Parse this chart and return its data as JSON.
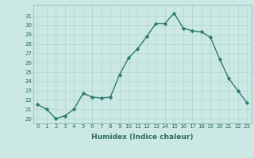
{
  "x": [
    0,
    1,
    2,
    3,
    4,
    5,
    6,
    7,
    8,
    9,
    10,
    11,
    12,
    13,
    14,
    15,
    16,
    17,
    18,
    19,
    20,
    21,
    22,
    23
  ],
  "y": [
    21.5,
    21.0,
    20.0,
    20.3,
    21.0,
    22.7,
    22.3,
    22.2,
    22.3,
    24.7,
    26.5,
    27.5,
    28.8,
    30.2,
    30.2,
    31.3,
    29.7,
    29.4,
    29.3,
    28.7,
    26.4,
    24.3,
    23.0,
    21.7
  ],
  "xlabel": "Humidex (Indice chaleur)",
  "xlim": [
    -0.5,
    23.5
  ],
  "ylim": [
    19.5,
    32.2
  ],
  "yticks": [
    20,
    21,
    22,
    23,
    24,
    25,
    26,
    27,
    28,
    29,
    30,
    31
  ],
  "xticks": [
    0,
    1,
    2,
    3,
    4,
    5,
    6,
    7,
    8,
    9,
    10,
    11,
    12,
    13,
    14,
    15,
    16,
    17,
    18,
    19,
    20,
    21,
    22,
    23
  ],
  "xtick_labels": [
    "0",
    "1",
    "2",
    "3",
    "4",
    "5",
    "6",
    "7",
    "8",
    "9",
    "10",
    "11",
    "12",
    "13",
    "14",
    "15",
    "16",
    "17",
    "18",
    "19",
    "20",
    "21",
    "22",
    "23"
  ],
  "line_color": "#2d7a6e",
  "marker": "D",
  "marker_size": 1.8,
  "bg_color": "#cce8e4",
  "grid_color": "#afd4cf",
  "line_width": 1.0
}
